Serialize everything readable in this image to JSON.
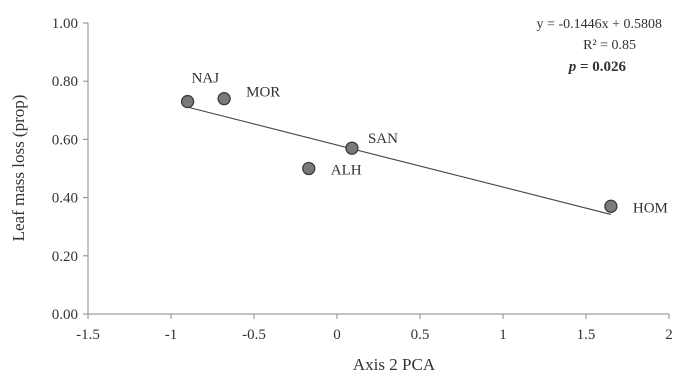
{
  "chart_data": {
    "type": "scatter",
    "xlabel": "Axis 2 PCA",
    "ylabel": "Leaf mass loss (prop)",
    "xlim": [
      -1.5,
      2
    ],
    "ylim": [
      0,
      1
    ],
    "xticks": [
      -1.5,
      -1,
      -0.5,
      0,
      0.5,
      1,
      1.5,
      2
    ],
    "xtick_labels": [
      "-1.5",
      "-1",
      "-0.5",
      "0",
      "0.5",
      "1",
      "1.5",
      "2"
    ],
    "yticks": [
      0,
      0.2,
      0.4,
      0.6,
      0.8,
      1
    ],
    "ytick_labels": [
      "0.00",
      "0.20",
      "0.40",
      "0.60",
      "0.80",
      "1.00"
    ],
    "grid": false,
    "points": [
      {
        "label": "NAJ",
        "x": -0.9,
        "y": 0.73
      },
      {
        "label": "MOR",
        "x": -0.68,
        "y": 0.74
      },
      {
        "label": "SAN",
        "x": 0.09,
        "y": 0.57
      },
      {
        "label": "ALH",
        "x": -0.17,
        "y": 0.5
      },
      {
        "label": "HOM",
        "x": 1.65,
        "y": 0.37
      }
    ],
    "trendline": {
      "slope": -0.1446,
      "intercept": 0.5808,
      "x_range": [
        -0.9,
        1.65
      ]
    },
    "annotations": {
      "equation": "y = -0.1446x + 0.5808",
      "r_squared": "R² = 0.85",
      "p_italic": "p",
      "p_value": " = 0.026"
    }
  }
}
